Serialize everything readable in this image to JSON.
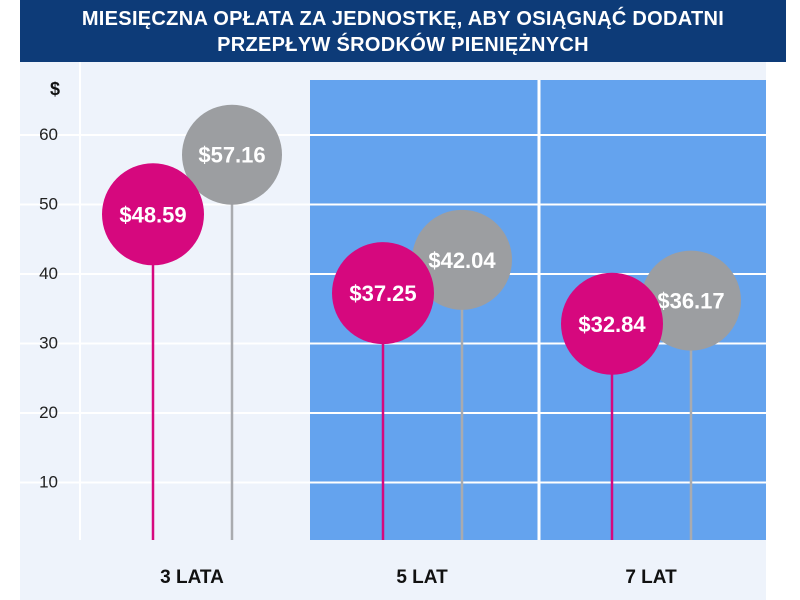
{
  "chart_data": {
    "type": "lollipop",
    "title": [
      "MIESIĘCZNA OPŁATA ZA JEDNOSTKĘ, ABY OSIĄGNĄĆ DODATNI",
      "PRZEPŁYW ŚRODKÓW PIENIĘŻNYCH"
    ],
    "ylabel": "$",
    "ylim": [
      0,
      62
    ],
    "yticks": [
      10,
      20,
      30,
      40,
      50,
      60
    ],
    "categories": [
      "3 LATA",
      "5 LAT",
      "7 LAT"
    ],
    "series": [
      {
        "name": "series-1",
        "color": "#d6087e",
        "values": [
          48.59,
          37.25,
          32.84
        ],
        "labels": [
          "$48.59",
          "$37.25",
          "$32.84"
        ]
      },
      {
        "name": "series-2",
        "color": "#9c9ea1",
        "values": [
          57.16,
          42.04,
          36.17
        ],
        "labels": [
          "$57.16",
          "$42.04",
          "$36.17"
        ]
      }
    ],
    "colors": {
      "title_bg": "#0d3b78",
      "plot_bg": "#eef3fb",
      "highlight_bg": "#64a3ee",
      "stem_gray": "#a9abaf"
    }
  }
}
